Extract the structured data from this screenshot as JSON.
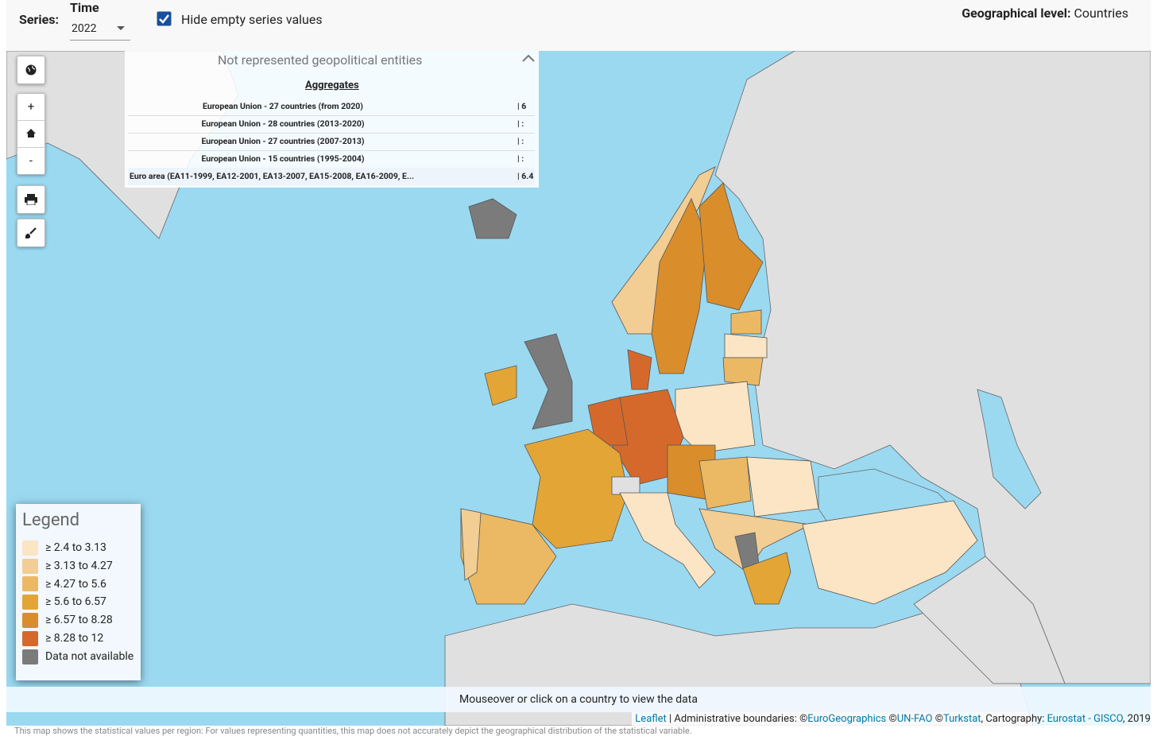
{
  "header": {
    "series_label": "Series:",
    "time_label": "Time",
    "time_value": "2022",
    "checkbox_label": "Hide empty series values",
    "geo_level_label": "Geographical level:",
    "geo_level_value": "Countries"
  },
  "controls": {
    "zoom_in": "+",
    "zoom_out": "-"
  },
  "panel": {
    "title": "Not represented geopolitical entities",
    "section": "Aggregates",
    "rows": [
      {
        "name": "European Union - 27 countries (from 2020)",
        "value": "| 6"
      },
      {
        "name": "European Union - 28 countries (2013-2020)",
        "value": "| :"
      },
      {
        "name": "European Union - 27 countries (2007-2013)",
        "value": "| :"
      },
      {
        "name": "European Union - 15 countries (1995-2004)",
        "value": "| :"
      },
      {
        "name": "Euro area (EA11-1999, EA12-2001, EA13-2007, EA15-2008, EA16-2009, E...",
        "value": "| 6.4"
      }
    ]
  },
  "legend": {
    "title": "Legend",
    "items": [
      {
        "label": "≥ 2.4 to 3.13",
        "color": "#fbe5c4"
      },
      {
        "label": "≥ 3.13 to 4.27",
        "color": "#f2cd94"
      },
      {
        "label": "≥ 4.27 to 5.6",
        "color": "#ebb964"
      },
      {
        "label": "≥ 5.6 to 6.57",
        "color": "#e3a535"
      },
      {
        "label": "≥ 6.57 to 8.28",
        "color": "#d98d2b"
      },
      {
        "label": "≥ 8.28 to 12",
        "color": "#d4692b"
      },
      {
        "label": "Data not available",
        "color": "#7b7b7b"
      }
    ]
  },
  "footer": {
    "info": "Mouseover or click on a country to view the data",
    "attribution": [
      {
        "text": "Leaflet",
        "link": true
      },
      {
        "text": " | Administrative boundaries: ©",
        "link": false
      },
      {
        "text": "EuroGeographics",
        "link": true
      },
      {
        "text": " ©",
        "link": false
      },
      {
        "text": "UN-FAO",
        "link": true
      },
      {
        "text": " ©",
        "link": false
      },
      {
        "text": "Turkstat",
        "link": true
      },
      {
        "text": ", Cartography: ",
        "link": false
      },
      {
        "text": "Eurostat - GISCO",
        "link": true
      },
      {
        "text": ", 2019",
        "link": false
      }
    ],
    "disclaimer": "This map shows the statistical values per region: For values representing quantities, this map does not accurately depict the geographical distribution of the statistical variable."
  }
}
